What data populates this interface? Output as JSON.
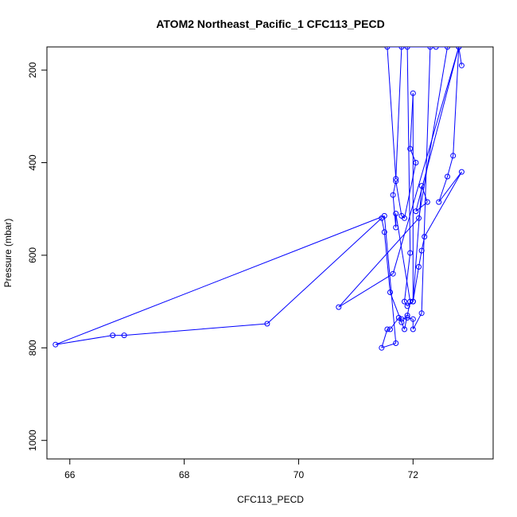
{
  "chart_data": {
    "type": "line",
    "title": "ATOM2 Northeast_Pacific_1 CFC113_PECD",
    "xlabel": "CFC113_PECD",
    "ylabel": "Pressure (mbar)",
    "xlim": [
      65.6,
      73.4
    ],
    "ylim": [
      1040,
      150
    ],
    "y_reversed": true,
    "x_ticks": [
      66,
      68,
      70,
      72
    ],
    "y_ticks": [
      200,
      400,
      600,
      800,
      1000
    ],
    "grid": false,
    "series_color": "#0000ff",
    "points": [
      [
        72.85,
        190
      ],
      [
        72.8,
        150
      ],
      [
        72.7,
        385
      ],
      [
        72.6,
        430
      ],
      [
        72.45,
        485
      ],
      [
        72.85,
        420
      ],
      [
        72.2,
        560
      ],
      [
        72.15,
        590
      ],
      [
        72.1,
        625
      ],
      [
        72.0,
        700
      ],
      [
        72.0,
        250
      ],
      [
        71.95,
        370
      ],
      [
        72.05,
        400
      ],
      [
        71.85,
        520
      ],
      [
        71.8,
        515
      ],
      [
        71.7,
        440
      ],
      [
        71.65,
        470
      ],
      [
        71.7,
        540
      ],
      [
        71.7,
        510
      ],
      [
        71.95,
        700
      ],
      [
        71.9,
        730
      ],
      [
        71.85,
        760
      ],
      [
        71.8,
        745
      ],
      [
        71.6,
        680
      ],
      [
        71.5,
        550
      ],
      [
        71.45,
        520
      ],
      [
        69.45,
        748
      ],
      [
        66.95,
        773
      ],
      [
        66.75,
        773
      ],
      [
        65.75,
        793
      ],
      [
        71.5,
        515
      ],
      [
        71.7,
        790
      ],
      [
        71.45,
        800
      ],
      [
        71.55,
        760
      ],
      [
        71.6,
        760
      ],
      [
        71.75,
        735
      ],
      [
        71.8,
        738
      ],
      [
        71.9,
        735
      ],
      [
        72.0,
        738
      ],
      [
        72.0,
        760
      ],
      [
        72.15,
        725
      ],
      [
        72.3,
        150
      ],
      [
        71.9,
        150
      ],
      [
        71.95,
        595
      ],
      [
        71.85,
        700
      ],
      [
        71.9,
        710
      ],
      [
        72.0,
        700
      ],
      [
        72.15,
        450
      ],
      [
        72.25,
        485
      ],
      [
        72.05,
        505
      ],
      [
        72.8,
        150
      ],
      [
        71.65,
        640
      ],
      [
        70.7,
        712
      ],
      [
        72.1,
        520
      ],
      [
        72.6,
        150
      ],
      [
        72.4,
        150
      ],
      [
        71.55,
        150
      ],
      [
        71.7,
        435
      ],
      [
        71.8,
        150
      ]
    ]
  }
}
